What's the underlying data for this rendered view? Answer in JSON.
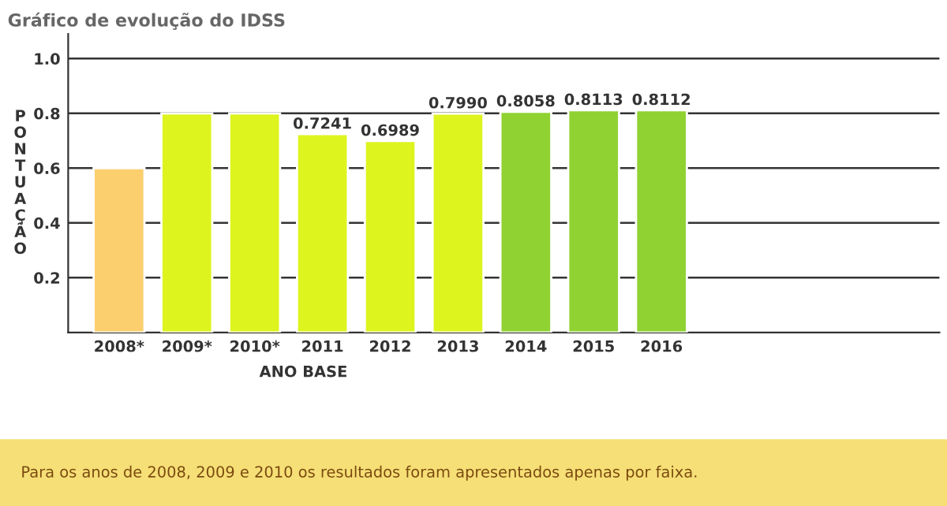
{
  "chart_data": {
    "type": "bar",
    "title": "Gráfico de evolução do IDSS",
    "xlabel": "ANO BASE",
    "ylabel": "PONTUAÇÃO",
    "categories": [
      "2008*",
      "2009*",
      "2010*",
      "2011",
      "2012",
      "2013",
      "2014",
      "2015",
      "2016"
    ],
    "values": [
      0.6,
      0.8,
      0.8,
      0.7241,
      0.6989,
      0.799,
      0.8058,
      0.8113,
      0.8112
    ],
    "value_labels": [
      null,
      null,
      null,
      "0.7241",
      "0.6989",
      "0.7990",
      "0.8058",
      "0.8113",
      "0.8112"
    ],
    "colors": [
      "#fbcf6e",
      "#ddf41f",
      "#ddf41f",
      "#ddf41f",
      "#ddf41f",
      "#ddf41f",
      "#8fd232",
      "#8fd232",
      "#8fd232"
    ],
    "ylim": [
      0,
      1.09
    ],
    "yticks": [
      0.2,
      0.4,
      0.6,
      0.8,
      {
        "value": 1,
        "label": "1.0"
      }
    ],
    "grid": "y",
    "annotations": [
      "Para os anos de 2008, 2009 e 2010 os resultados foram apresentados apenas por faixa."
    ]
  }
}
